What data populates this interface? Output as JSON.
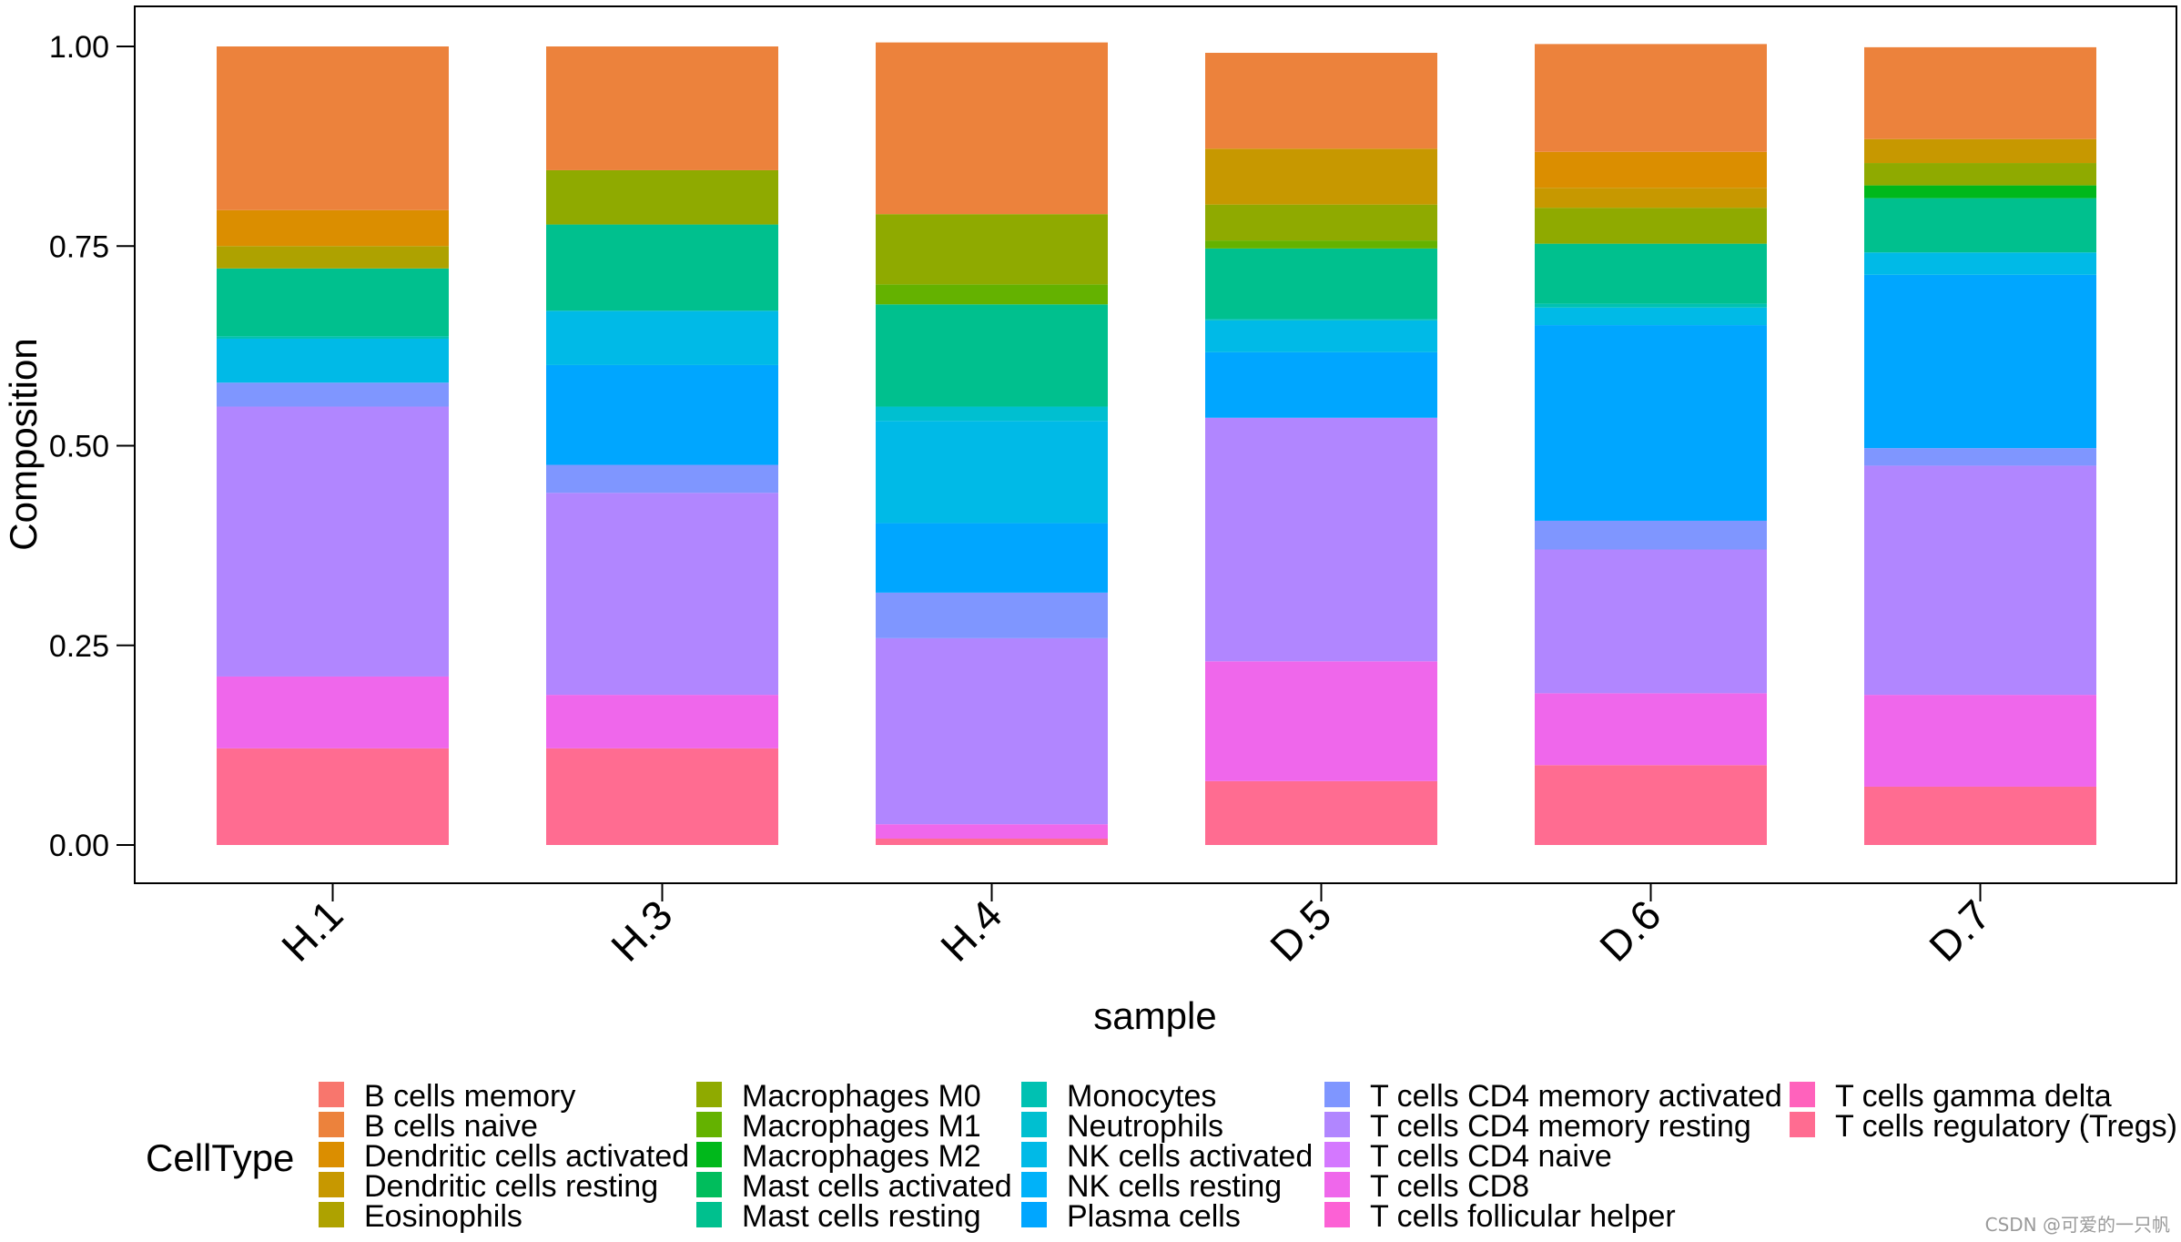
{
  "chart_data": {
    "type": "bar",
    "stacked": true,
    "xlabel": "sample",
    "ylabel": "Composition",
    "ylim": [
      0,
      1
    ],
    "yticks": [
      "0.00",
      "0.25",
      "0.50",
      "0.75",
      "1.00"
    ],
    "categories": [
      "H.1",
      "H.3",
      "H.4",
      "D.5",
      "D.6",
      "D.7"
    ],
    "legend_title": "CellType",
    "legend_position": "bottom",
    "series": [
      {
        "name": "B cells memory",
        "color": "#F8766D",
        "values": [
          0,
          0,
          0,
          0,
          0,
          0
        ]
      },
      {
        "name": "B cells naive",
        "color": "#EC823C",
        "values": [
          0.205,
          0.155,
          0.215,
          0.12,
          0.135,
          0.115
        ]
      },
      {
        "name": "Dendritic cells activated",
        "color": "#DB8E00",
        "values": [
          0.045,
          0,
          0,
          0,
          0.045,
          0
        ]
      },
      {
        "name": "Dendritic cells resting",
        "color": "#C79800",
        "values": [
          0,
          0,
          0,
          0.07,
          0.025,
          0.03
        ]
      },
      {
        "name": "Eosinophils",
        "color": "#AEA200",
        "values": [
          0.028,
          0,
          0,
          0,
          0,
          0
        ]
      },
      {
        "name": "Macrophages M0",
        "color": "#8FAA00",
        "values": [
          0,
          0.068,
          0.088,
          0.045,
          0.045,
          0.028
        ]
      },
      {
        "name": "Macrophages M1",
        "color": "#64B200",
        "values": [
          0,
          0,
          0.025,
          0.01,
          0,
          0
        ]
      },
      {
        "name": "Macrophages M2",
        "color": "#00B81B",
        "values": [
          0,
          0,
          0,
          0,
          0,
          0.016
        ]
      },
      {
        "name": "Mast cells activated",
        "color": "#00BD5C",
        "values": [
          0,
          0,
          0,
          0,
          0,
          0
        ]
      },
      {
        "name": "Mast cells resting",
        "color": "#00C08E",
        "values": [
          0.085,
          0.108,
          0.128,
          0.088,
          0.075,
          0.068
        ]
      },
      {
        "name": "Monocytes",
        "color": "#00C1B2",
        "values": [
          0.003,
          0,
          0,
          0.002,
          0.005,
          0
        ]
      },
      {
        "name": "Neutrophils",
        "color": "#00BFD0",
        "values": [
          0,
          0,
          0.018,
          0,
          0,
          0
        ]
      },
      {
        "name": "NK cells activated",
        "color": "#00BAE7",
        "values": [
          0.055,
          0.068,
          0.128,
          0.04,
          0.022,
          0.028
        ]
      },
      {
        "name": "NK cells resting",
        "color": "#00B2F9",
        "values": [
          0,
          0,
          0,
          0,
          0,
          0
        ]
      },
      {
        "name": "Plasma cells",
        "color": "#00A6FF",
        "values": [
          0,
          0.125,
          0.087,
          0.082,
          0.245,
          0.217
        ]
      },
      {
        "name": "T cells CD4 memory activated",
        "color": "#7F96FF",
        "values": [
          0.03,
          0.035,
          0.057,
          0,
          0.036,
          0.022
        ]
      },
      {
        "name": "T cells CD4 memory resting",
        "color": "#B186FF",
        "values": [
          0.338,
          0.253,
          0.233,
          0.305,
          0.18,
          0.287
        ]
      },
      {
        "name": "T cells CD4 naive",
        "color": "#D478FF",
        "values": [
          0,
          0,
          0,
          0,
          0,
          0
        ]
      },
      {
        "name": "T cells CD8",
        "color": "#EF67EB",
        "values": [
          0.09,
          0.067,
          0.018,
          0.15,
          0.09,
          0.115
        ]
      },
      {
        "name": "T cells follicular helper",
        "color": "#FC61D5",
        "values": [
          0,
          0,
          0,
          0,
          0,
          0
        ]
      },
      {
        "name": "T cells gamma delta",
        "color": "#FF62BC",
        "values": [
          0,
          0,
          0,
          0,
          0,
          0
        ]
      },
      {
        "name": "T cells regulatory (Tregs)",
        "color": "#FF6C91",
        "values": [
          0.121,
          0.121,
          0.008,
          0.08,
          0.1,
          0.073
        ]
      }
    ]
  },
  "watermark": "CSDN @可爱的一只帆"
}
